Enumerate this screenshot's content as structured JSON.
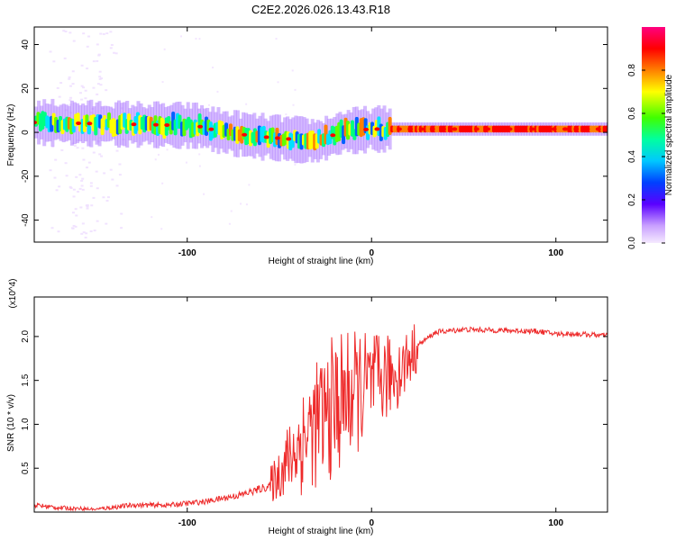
{
  "title": "C2E2.2026.026.13.43.R18",
  "chart_data": [
    {
      "type": "heatmap",
      "name": "spectrogram",
      "xlabel": "Height of straight line (km)",
      "ylabel": "Frequency (Hz)",
      "xlim": [
        -183,
        128
      ],
      "ylim": [
        -50,
        48
      ],
      "xticks": [
        -100,
        0,
        100
      ],
      "yticks": [
        -40,
        -20,
        0,
        20,
        40
      ],
      "colorbar": {
        "label": "Normalized spectral amplitude",
        "range": [
          0,
          1
        ],
        "ticks": [
          0.0,
          0.2,
          0.4,
          0.6,
          0.8
        ],
        "colors": [
          "#f0e0ff",
          "#b080ff",
          "#4000ff",
          "#0060ff",
          "#00e0ff",
          "#00ff80",
          "#60ff00",
          "#ffff00",
          "#ff8000",
          "#ff0000",
          "#ff0080"
        ]
      },
      "ridge": [
        {
          "x": -183,
          "f": 4.5
        },
        {
          "x": -150,
          "f": 4
        },
        {
          "x": -120,
          "f": 3.5
        },
        {
          "x": -95,
          "f": 3
        },
        {
          "x": -80,
          "f": 0
        },
        {
          "x": -60,
          "f": -2
        },
        {
          "x": -45,
          "f": -3
        },
        {
          "x": -30,
          "f": -4
        },
        {
          "x": -15,
          "f": 0.5
        },
        {
          "x": 0,
          "f": 1.5
        },
        {
          "x": 20,
          "f": 1.5
        },
        {
          "x": 60,
          "f": 1.5
        },
        {
          "x": 100,
          "f": 1.5
        },
        {
          "x": 128,
          "f": 1.5
        }
      ]
    },
    {
      "type": "line",
      "name": "snr",
      "xlabel": "Height of straight line (km)",
      "ylabel": "SNR (10 * v/v)",
      "scale_label": "(x10^4)",
      "xlim": [
        -183,
        128
      ],
      "ylim": [
        0,
        2.45
      ],
      "xticks": [
        -100,
        0,
        100
      ],
      "yticks": [
        0.5,
        1.0,
        1.5,
        2.0
      ],
      "line_color": "#ee2a2a",
      "series": [
        {
          "name": "SNR",
          "x": [
            -183,
            -170,
            -150,
            -130,
            -110,
            -90,
            -70,
            -55,
            -45,
            -35,
            -25,
            -15,
            -5,
            5,
            15,
            25,
            35,
            50,
            70,
            90,
            100,
            110,
            128
          ],
          "y": [
            0.08,
            0.05,
            0.03,
            0.08,
            0.08,
            0.12,
            0.2,
            0.3,
            0.6,
            0.9,
            1.1,
            1.3,
            1.4,
            1.5,
            1.6,
            1.9,
            2.05,
            2.08,
            2.07,
            2.06,
            2.03,
            2.03,
            2.01
          ]
        }
      ]
    }
  ]
}
